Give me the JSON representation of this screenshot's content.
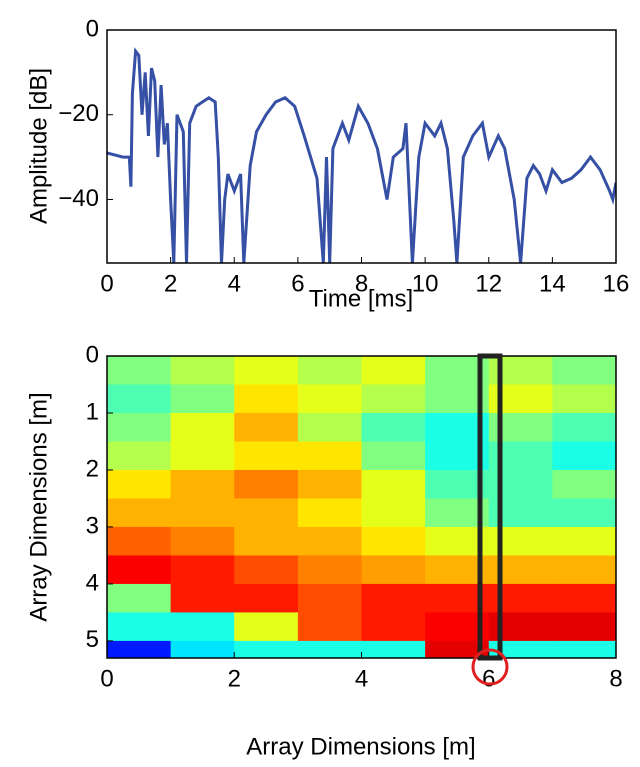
{
  "chart_data": [
    {
      "type": "line",
      "xlabel": "Time [ms]",
      "ylabel": "Amplitude [dB]",
      "color": "#3550a5",
      "x": [
        0,
        0.5,
        0.7,
        0.75,
        0.8,
        0.9,
        1.0,
        1.1,
        1.2,
        1.3,
        1.4,
        1.5,
        1.6,
        1.7,
        1.8,
        1.9,
        2.0,
        2.1,
        2.2,
        2.4,
        2.5,
        2.6,
        2.8,
        3.0,
        3.2,
        3.4,
        3.5,
        3.6,
        3.7,
        3.8,
        4.0,
        4.2,
        4.3,
        4.5,
        4.7,
        5.0,
        5.3,
        5.6,
        5.9,
        6.2,
        6.6,
        6.8,
        6.9,
        7.0,
        7.1,
        7.4,
        7.6,
        7.9,
        8.2,
        8.5,
        8.8,
        9.0,
        9.3,
        9.4,
        9.6,
        9.8,
        10.0,
        10.3,
        10.5,
        10.7,
        10.9,
        11.0,
        11.2,
        11.5,
        11.8,
        12.0,
        12.3,
        12.5,
        12.8,
        13.0,
        13.2,
        13.4,
        13.6,
        13.8,
        14.0,
        14.3,
        14.6,
        14.9,
        15.2,
        15.5,
        15.8,
        15.9,
        16.0
      ],
      "values": [
        -29,
        -30,
        -30,
        -37,
        -15,
        -5,
        -6,
        -20,
        -10,
        -25,
        -9,
        -12,
        -30,
        -13,
        -27,
        -22,
        -40,
        -55,
        -20,
        -24,
        -55,
        -22,
        -18,
        -17,
        -16,
        -17,
        -30,
        -55,
        -40,
        -34,
        -38,
        -34,
        -55,
        -32,
        -24,
        -20,
        -17,
        -16,
        -18,
        -25,
        -35,
        -55,
        -30,
        -55,
        -28,
        -22,
        -26,
        -18,
        -22,
        -28,
        -40,
        -30,
        -28,
        -22,
        -55,
        -30,
        -22,
        -25,
        -22,
        -28,
        -45,
        -55,
        -30,
        -25,
        -22,
        -30,
        -25,
        -28,
        -40,
        -55,
        -35,
        -32,
        -34,
        -38,
        -33,
        -36,
        -35,
        -33,
        -30,
        -33,
        -38,
        -40,
        -36
      ],
      "xlim": [
        0,
        16
      ],
      "ylim": [
        -55,
        0
      ],
      "xticks": [
        0,
        2,
        4,
        6,
        8,
        10,
        12,
        14,
        16
      ],
      "yticks": [
        {
          "value": -40,
          "label": "−40"
        },
        {
          "value": -20,
          "label": "−20"
        },
        0
      ]
    },
    {
      "type": "heatmap",
      "xlabel": "Array Dimensions [m]",
      "ylabel": "Array Dimensions [m]",
      "colormap": "jet",
      "xbins": [
        0,
        1,
        2,
        3,
        4,
        5,
        6,
        7,
        8
      ],
      "ybins": [
        0,
        0.5,
        1,
        1.5,
        2,
        2.5,
        3,
        3.5,
        4,
        4.5,
        5,
        5.3
      ],
      "zlim": [
        0,
        1
      ],
      "z": [
        [
          0.5,
          0.55,
          0.6,
          0.55,
          0.6,
          0.5,
          0.55,
          0.5
        ],
        [
          0.45,
          0.5,
          0.65,
          0.6,
          0.55,
          0.5,
          0.6,
          0.55
        ],
        [
          0.5,
          0.6,
          0.7,
          0.55,
          0.45,
          0.4,
          0.5,
          0.45
        ],
        [
          0.55,
          0.6,
          0.65,
          0.65,
          0.5,
          0.4,
          0.45,
          0.4
        ],
        [
          0.65,
          0.7,
          0.75,
          0.7,
          0.6,
          0.45,
          0.45,
          0.5
        ],
        [
          0.7,
          0.7,
          0.7,
          0.65,
          0.6,
          0.5,
          0.45,
          0.45
        ],
        [
          0.78,
          0.75,
          0.7,
          0.7,
          0.65,
          0.6,
          0.6,
          0.6
        ],
        [
          0.88,
          0.85,
          0.8,
          0.75,
          0.72,
          0.7,
          0.7,
          0.7
        ],
        [
          0.5,
          0.85,
          0.85,
          0.8,
          0.85,
          0.85,
          0.85,
          0.85
        ],
        [
          0.4,
          0.4,
          0.6,
          0.8,
          0.85,
          0.88,
          0.9,
          0.9
        ],
        [
          0.15,
          0.35,
          0.4,
          0.4,
          0.4,
          0.9,
          0.4,
          0.4
        ]
      ],
      "xlim": [
        0,
        8
      ],
      "ylim": [
        5.3,
        0
      ],
      "xticks": [
        0,
        2,
        4,
        6,
        8
      ],
      "yticks": [
        0,
        1,
        2,
        3,
        4,
        5
      ]
    }
  ]
}
